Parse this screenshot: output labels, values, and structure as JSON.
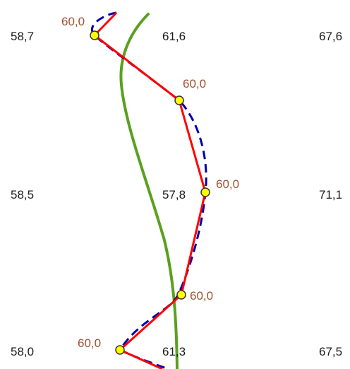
{
  "grid_values": [
    {
      "id": "r1c1",
      "text": "58,7"
    },
    {
      "id": "r1c2",
      "text": "61,6"
    },
    {
      "id": "r1c3",
      "text": "67,6"
    },
    {
      "id": "r2c1",
      "text": "58,5"
    },
    {
      "id": "r2c2",
      "text": "57,8"
    },
    {
      "id": "r2c3",
      "text": "71,1"
    },
    {
      "id": "r3c1",
      "text": "58,0"
    },
    {
      "id": "r3c2",
      "text": "61,3"
    },
    {
      "id": "r3c3",
      "text": "67,5"
    }
  ],
  "contour_points": [
    {
      "id": "p1",
      "label": "60,0"
    },
    {
      "id": "p2",
      "label": "60,0"
    },
    {
      "id": "p3",
      "label": "60,0"
    },
    {
      "id": "p4",
      "label": "60,0"
    },
    {
      "id": "p5",
      "label": "60,0"
    }
  ],
  "lines": {
    "linear_interpolation": {
      "color": "#ff0000"
    },
    "smooth_contour": {
      "color": "#0000a8"
    },
    "reference_curve": {
      "color": "#5aa01e"
    }
  },
  "marker_colors": {
    "fill": "#ffff00",
    "stroke": "#333333"
  },
  "label_color": "#a0522d"
}
